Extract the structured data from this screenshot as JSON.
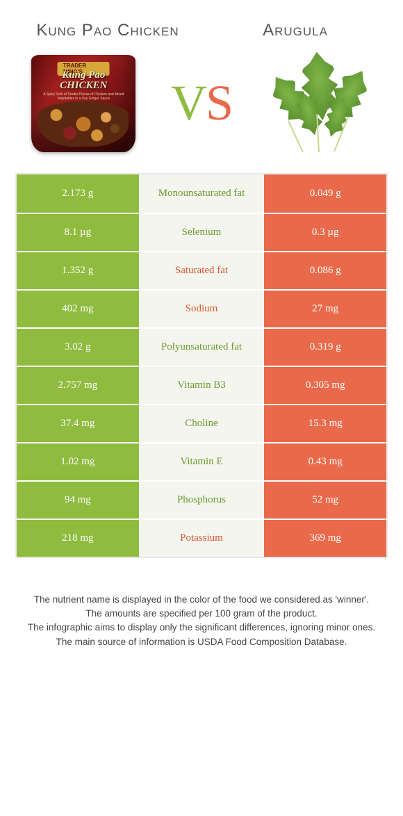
{
  "header": {
    "left_title": "Kung Pao Chicken",
    "right_title": "Arugula",
    "vs_v": "V",
    "vs_s": "S"
  },
  "bag": {
    "banner": "TRADER MING'S",
    "title_l1": "Kung Pao",
    "title_l2": "CHICKEN",
    "sub": "A Spicy Dish of Tender Pieces of Chicken and Mixed Vegetables in a Soy Ginger Sauce"
  },
  "colors": {
    "green": "#8fbc3f",
    "orange": "#e96a4a",
    "green_text": "#6a9a2a",
    "orange_text": "#d8582a",
    "mid_bg": "#f5f5f0",
    "border": "#e8e8e8"
  },
  "rows": [
    {
      "left": "2.173 g",
      "label": "Monounsaturated fat",
      "right": "0.049 g",
      "winner": "left"
    },
    {
      "left": "8.1 µg",
      "label": "Selenium",
      "right": "0.3 µg",
      "winner": "left"
    },
    {
      "left": "1.352 g",
      "label": "Saturated fat",
      "right": "0.086 g",
      "winner": "right"
    },
    {
      "left": "402 mg",
      "label": "Sodium",
      "right": "27 mg",
      "winner": "right"
    },
    {
      "left": "3.02 g",
      "label": "Polyunsaturated fat",
      "right": "0.319 g",
      "winner": "left"
    },
    {
      "left": "2.757 mg",
      "label": "Vitamin B3",
      "right": "0.305 mg",
      "winner": "left"
    },
    {
      "left": "37.4 mg",
      "label": "Choline",
      "right": "15.3 mg",
      "winner": "left"
    },
    {
      "left": "1.02 mg",
      "label": "Vitamin E",
      "right": "0.43 mg",
      "winner": "left"
    },
    {
      "left": "94 mg",
      "label": "Phosphorus",
      "right": "52 mg",
      "winner": "left"
    },
    {
      "left": "218 mg",
      "label": "Potassium",
      "right": "369 mg",
      "winner": "right"
    }
  ],
  "footnotes": {
    "l1": "The nutrient name is displayed in the color of the food we considered as 'winner'.",
    "l2": "The amounts are specified per 100 gram of the product.",
    "l3": "The infographic aims to display only the significant differences, ignoring minor ones.",
    "l4": "The main source of information is USDA Food Composition Database."
  }
}
